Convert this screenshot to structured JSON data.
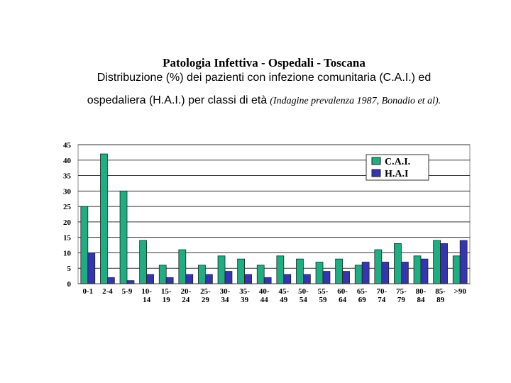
{
  "chart_data": {
    "type": "bar",
    "title": "Patologia Infettiva - Ospedali - Toscana",
    "subtitle_line1": "Distribuzione  (%) dei pazienti con infezione comunitaria (C.A.I.) ed",
    "subtitle_line2": "ospedaliera (H.A.I.) per classi di età",
    "note": "(Indagine prevalenza 1987, Bonadio et al).",
    "categories": [
      "0-1",
      "2-4",
      "5-9",
      "10-14",
      "15-19",
      "20-24",
      "25-29",
      "30-34",
      "35-39",
      "40-44",
      "45-49",
      "50-54",
      "55-59",
      "60-64",
      "65-69",
      "70-74",
      "75-79",
      "80-84",
      "85-89",
      ">90"
    ],
    "series": [
      {
        "name": "C.A.I.",
        "color": "#1fae82",
        "values": [
          25,
          42,
          30,
          14,
          6,
          11,
          6,
          9,
          8,
          6,
          9,
          8,
          7,
          8,
          6,
          11,
          13,
          9,
          14,
          9
        ]
      },
      {
        "name": "H.A.I",
        "color": "#3535b0",
        "values": [
          10,
          2,
          1,
          3,
          2,
          3,
          3,
          4,
          3,
          2,
          3,
          3,
          4,
          4,
          7,
          7,
          7,
          8,
          13,
          14
        ]
      }
    ],
    "ylim": [
      0,
      45
    ],
    "yticks": [
      0,
      5,
      10,
      15,
      20,
      25,
      30,
      35,
      40,
      45
    ],
    "grid": true,
    "legend": "top-right"
  }
}
